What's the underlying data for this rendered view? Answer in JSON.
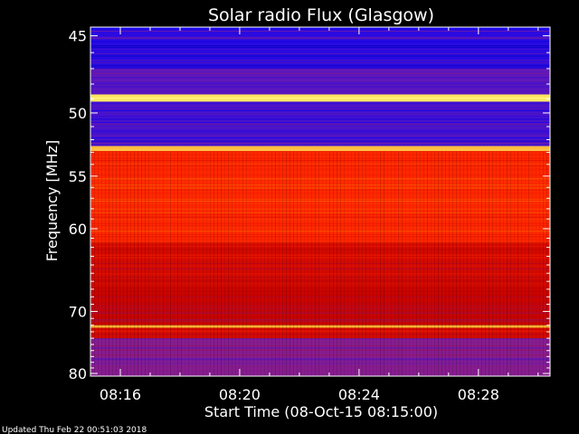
{
  "chart_data": {
    "type": "heatmap",
    "title": "Solar radio Flux (Glasgow)",
    "xlabel": "Start Time (08-Oct-15 08:15:00)",
    "ylabel": "Frequency [MHz]",
    "x_ticks": [
      "08:16",
      "08:20",
      "08:24",
      "08:28"
    ],
    "x_tick_minutes": [
      16,
      20,
      24,
      28
    ],
    "xlim_minutes": [
      15,
      30.4
    ],
    "y_ticks": [
      45,
      50,
      55,
      60,
      70,
      80
    ],
    "ylim": [
      44.5,
      80.5
    ],
    "y_scale": "reciprocal",
    "colormap": [
      "#000040",
      "#0000ff",
      "#8020a0",
      "#c00000",
      "#ff2000",
      "#ff8000",
      "#ffff80"
    ],
    "bands_mhz": [
      {
        "from": 44.5,
        "to": 47.0,
        "level": 0.22
      },
      {
        "from": 47.0,
        "to": 48.7,
        "level": 0.28
      },
      {
        "from": 48.7,
        "to": 49.2,
        "level": 0.97
      },
      {
        "from": 49.2,
        "to": 52.5,
        "level": 0.26
      },
      {
        "from": 52.5,
        "to": 52.9,
        "level": 0.92
      },
      {
        "from": 52.9,
        "to": 61.5,
        "level": 0.68
      },
      {
        "from": 61.5,
        "to": 66.5,
        "level": 0.55
      },
      {
        "from": 66.5,
        "to": 72.0,
        "level": 0.52
      },
      {
        "from": 72.0,
        "to": 72.4,
        "level": 0.9
      },
      {
        "from": 72.4,
        "to": 74.0,
        "level": 0.55
      },
      {
        "from": 74.0,
        "to": 80.5,
        "level": 0.35
      }
    ],
    "grid": false
  },
  "footer": {
    "updated": "Updated Thu Feb 22 00:51:03 2018"
  }
}
